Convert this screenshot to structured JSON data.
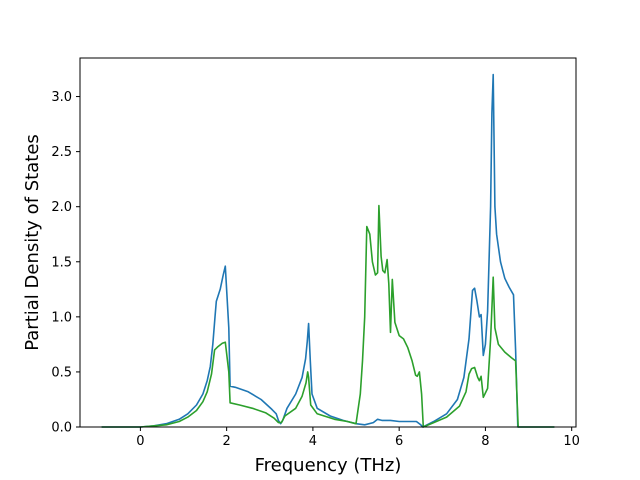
{
  "chart_data": {
    "type": "line",
    "title": "",
    "xlabel": "Frequency (THz)",
    "ylabel": "Partial Density of States",
    "xlim": [
      -1.4,
      10.1
    ],
    "ylim": [
      0,
      3.35
    ],
    "xticks": [
      0,
      2,
      4,
      6,
      8,
      10
    ],
    "xtick_labels": [
      "0",
      "2",
      "4",
      "6",
      "8",
      "10"
    ],
    "yticks": [
      0,
      0.5,
      1.0,
      1.5,
      2.0,
      2.5,
      3.0
    ],
    "ytick_labels": [
      "0.0",
      "0.5",
      "1.0",
      "1.5",
      "2.0",
      "2.5",
      "3.0"
    ],
    "grid": false,
    "legend": "none",
    "series": [
      {
        "color": "#1f77b4",
        "points": [
          [
            -0.9,
            0.0
          ],
          [
            -0.5,
            0.0
          ],
          [
            0.0,
            0.0
          ],
          [
            0.3,
            0.01
          ],
          [
            0.6,
            0.03
          ],
          [
            0.9,
            0.07
          ],
          [
            1.1,
            0.12
          ],
          [
            1.3,
            0.2
          ],
          [
            1.45,
            0.3
          ],
          [
            1.55,
            0.42
          ],
          [
            1.62,
            0.55
          ],
          [
            1.68,
            0.75
          ],
          [
            1.73,
            1.0
          ],
          [
            1.76,
            1.14
          ],
          [
            1.85,
            1.25
          ],
          [
            1.92,
            1.38
          ],
          [
            1.97,
            1.46
          ],
          [
            2.05,
            0.9
          ],
          [
            2.08,
            0.37
          ],
          [
            2.2,
            0.36
          ],
          [
            2.5,
            0.32
          ],
          [
            2.8,
            0.25
          ],
          [
            3.05,
            0.16
          ],
          [
            3.15,
            0.12
          ],
          [
            3.2,
            0.06
          ],
          [
            3.25,
            0.03
          ],
          [
            3.3,
            0.06
          ],
          [
            3.4,
            0.17
          ],
          [
            3.6,
            0.3
          ],
          [
            3.75,
            0.45
          ],
          [
            3.83,
            0.62
          ],
          [
            3.87,
            0.78
          ],
          [
            3.9,
            0.94
          ],
          [
            3.94,
            0.6
          ],
          [
            3.98,
            0.3
          ],
          [
            4.1,
            0.17
          ],
          [
            4.4,
            0.1
          ],
          [
            4.7,
            0.06
          ],
          [
            5.0,
            0.03
          ],
          [
            5.2,
            0.02
          ],
          [
            5.4,
            0.04
          ],
          [
            5.5,
            0.07
          ],
          [
            5.6,
            0.06
          ],
          [
            5.8,
            0.06
          ],
          [
            6.0,
            0.05
          ],
          [
            6.2,
            0.05
          ],
          [
            6.4,
            0.05
          ],
          [
            6.5,
            0.02
          ],
          [
            6.55,
            0.0
          ],
          [
            6.8,
            0.05
          ],
          [
            7.1,
            0.12
          ],
          [
            7.35,
            0.25
          ],
          [
            7.5,
            0.45
          ],
          [
            7.62,
            0.8
          ],
          [
            7.7,
            1.24
          ],
          [
            7.75,
            1.26
          ],
          [
            7.8,
            1.15
          ],
          [
            7.86,
            1.0
          ],
          [
            7.9,
            1.02
          ],
          [
            7.95,
            0.65
          ],
          [
            8.0,
            0.75
          ],
          [
            8.05,
            1.05
          ],
          [
            8.12,
            2.0
          ],
          [
            8.15,
            2.85
          ],
          [
            8.18,
            3.2
          ],
          [
            8.22,
            2.0
          ],
          [
            8.26,
            1.75
          ],
          [
            8.35,
            1.5
          ],
          [
            8.45,
            1.35
          ],
          [
            8.55,
            1.27
          ],
          [
            8.65,
            1.2
          ],
          [
            8.7,
            0.7
          ],
          [
            8.75,
            0.0
          ],
          [
            9.2,
            0.0
          ],
          [
            9.6,
            0.0
          ]
        ]
      },
      {
        "color": "#2ca02c",
        "points": [
          [
            -0.9,
            0.0
          ],
          [
            -0.5,
            0.0
          ],
          [
            0.0,
            0.0
          ],
          [
            0.3,
            0.01
          ],
          [
            0.6,
            0.02
          ],
          [
            0.9,
            0.05
          ],
          [
            1.1,
            0.09
          ],
          [
            1.3,
            0.15
          ],
          [
            1.45,
            0.23
          ],
          [
            1.55,
            0.32
          ],
          [
            1.65,
            0.48
          ],
          [
            1.72,
            0.7
          ],
          [
            1.8,
            0.73
          ],
          [
            1.9,
            0.76
          ],
          [
            1.97,
            0.77
          ],
          [
            2.05,
            0.5
          ],
          [
            2.08,
            0.22
          ],
          [
            2.3,
            0.2
          ],
          [
            2.6,
            0.17
          ],
          [
            2.9,
            0.13
          ],
          [
            3.1,
            0.08
          ],
          [
            3.2,
            0.04
          ],
          [
            3.27,
            0.04
          ],
          [
            3.35,
            0.1
          ],
          [
            3.6,
            0.17
          ],
          [
            3.75,
            0.28
          ],
          [
            3.84,
            0.4
          ],
          [
            3.88,
            0.5
          ],
          [
            3.9,
            0.45
          ],
          [
            3.95,
            0.2
          ],
          [
            4.1,
            0.12
          ],
          [
            4.5,
            0.07
          ],
          [
            4.8,
            0.05
          ],
          [
            5.0,
            0.03
          ],
          [
            5.1,
            0.3
          ],
          [
            5.15,
            0.6
          ],
          [
            5.2,
            1.0
          ],
          [
            5.25,
            1.82
          ],
          [
            5.32,
            1.75
          ],
          [
            5.38,
            1.5
          ],
          [
            5.45,
            1.38
          ],
          [
            5.5,
            1.4
          ],
          [
            5.53,
            2.01
          ],
          [
            5.58,
            1.55
          ],
          [
            5.62,
            1.42
          ],
          [
            5.67,
            1.4
          ],
          [
            5.72,
            1.52
          ],
          [
            5.76,
            1.3
          ],
          [
            5.8,
            0.86
          ],
          [
            5.84,
            1.34
          ],
          [
            5.9,
            0.95
          ],
          [
            6.0,
            0.83
          ],
          [
            6.1,
            0.8
          ],
          [
            6.2,
            0.72
          ],
          [
            6.3,
            0.6
          ],
          [
            6.38,
            0.47
          ],
          [
            6.42,
            0.46
          ],
          [
            6.47,
            0.5
          ],
          [
            6.52,
            0.3
          ],
          [
            6.56,
            0.0
          ],
          [
            6.8,
            0.04
          ],
          [
            7.1,
            0.09
          ],
          [
            7.4,
            0.19
          ],
          [
            7.55,
            0.32
          ],
          [
            7.62,
            0.48
          ],
          [
            7.68,
            0.53
          ],
          [
            7.75,
            0.54
          ],
          [
            7.82,
            0.45
          ],
          [
            7.86,
            0.42
          ],
          [
            7.9,
            0.46
          ],
          [
            7.95,
            0.27
          ],
          [
            8.05,
            0.35
          ],
          [
            8.12,
            0.8
          ],
          [
            8.18,
            1.36
          ],
          [
            8.22,
            0.9
          ],
          [
            8.3,
            0.75
          ],
          [
            8.45,
            0.68
          ],
          [
            8.6,
            0.63
          ],
          [
            8.7,
            0.6
          ],
          [
            8.74,
            0.2
          ],
          [
            8.76,
            0.0
          ],
          [
            9.2,
            0.0
          ],
          [
            9.6,
            0.0
          ]
        ]
      }
    ]
  }
}
